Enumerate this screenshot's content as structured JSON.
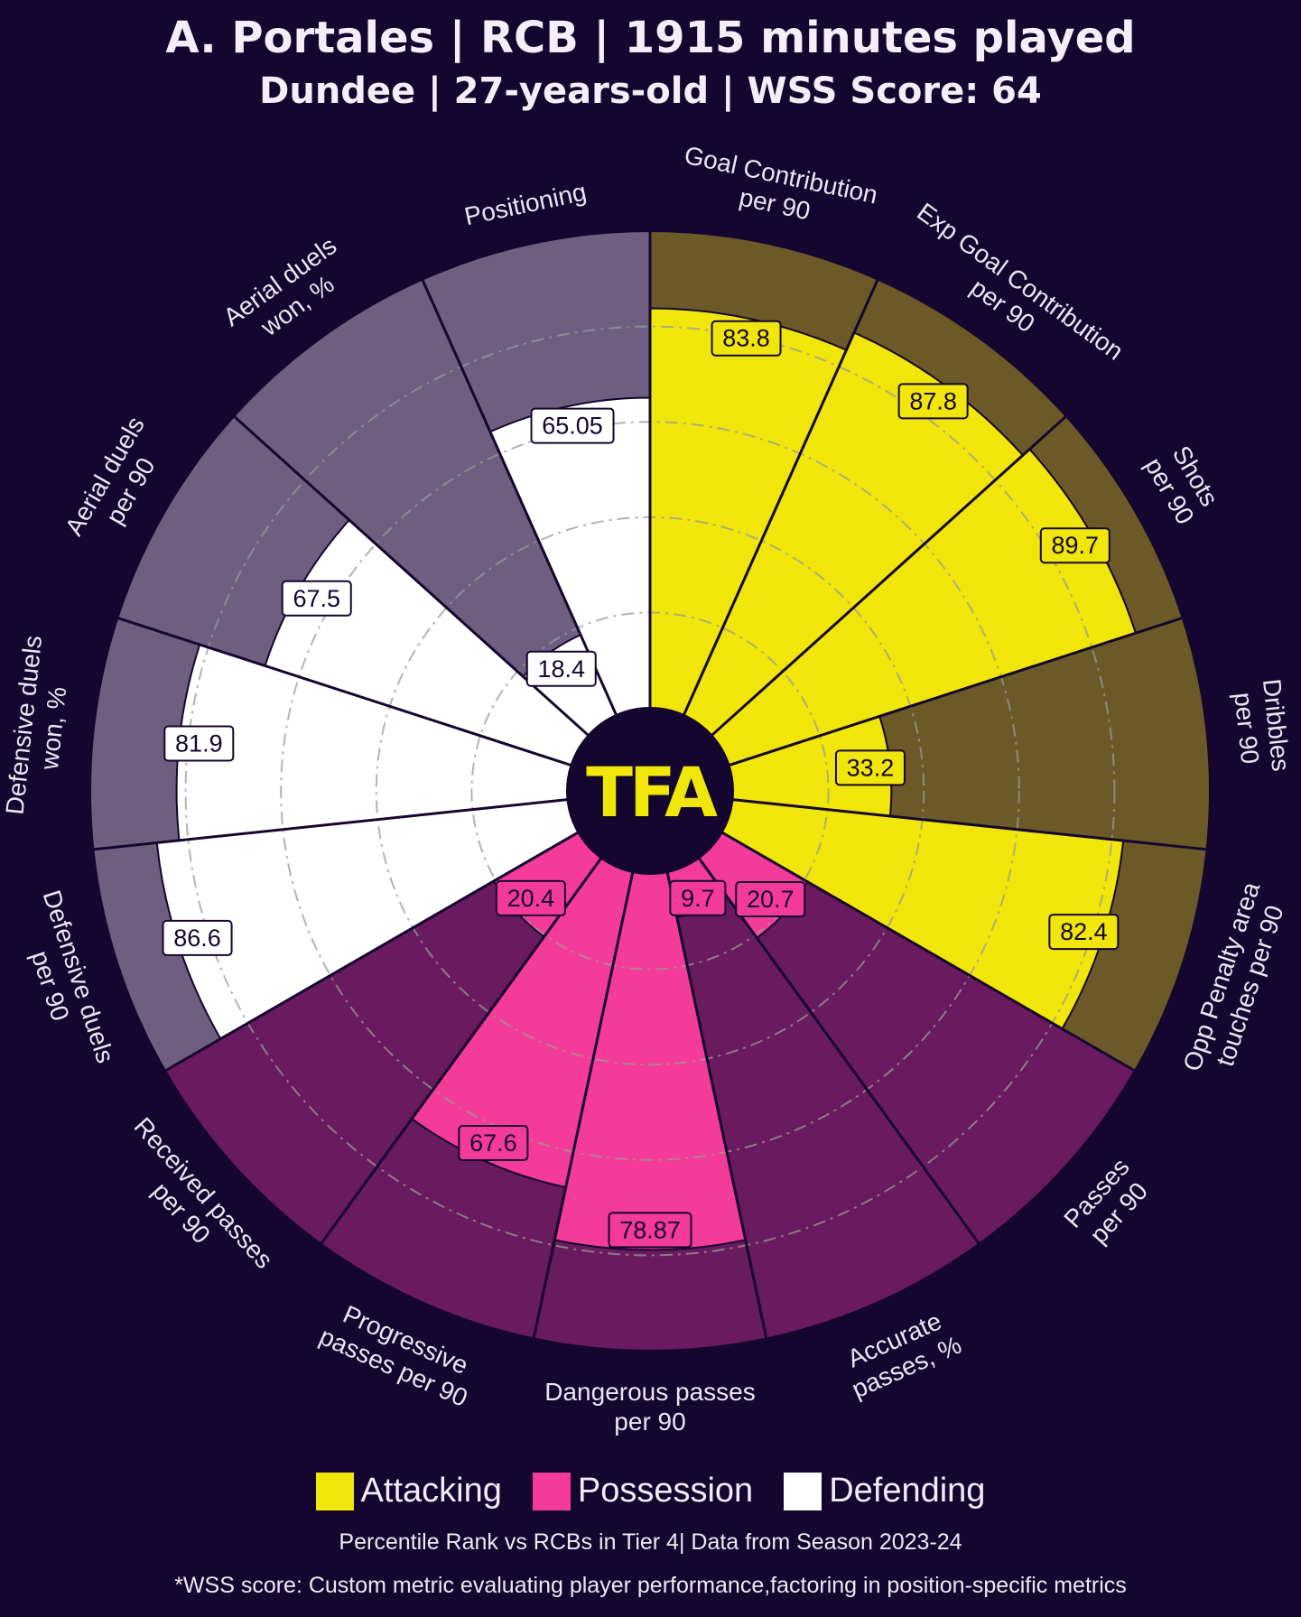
{
  "title": "A. Portales | RCB | 1915 minutes played",
  "subtitle": "Dundee | 27-years-old | WSS Score: 64",
  "logo_text": "TFA",
  "colors": {
    "background": "#14062f",
    "attacking_fill": "#f1e60a",
    "attacking_bg": "#6b5a28",
    "possession_fill": "#f43b99",
    "possession_bg": "#6a1a5e",
    "defending_fill": "#ffffff",
    "defending_bg": "#6e5f80"
  },
  "legend": [
    {
      "label": "Attacking",
      "color": "#f1e60a"
    },
    {
      "label": "Possession",
      "color": "#f43b99"
    },
    {
      "label": "Defending",
      "color": "#ffffff"
    }
  ],
  "footnote": "Percentile Rank vs RCBs in Tier 4| Data from Season 2023-24",
  "wss_note": "*WSS score: Custom metric evaluating player performance,factoring in position-specific metrics",
  "chart_data": {
    "type": "pizza",
    "value_range": [
      0,
      100
    ],
    "gridlines": [
      20,
      40,
      60,
      80
    ],
    "series": [
      {
        "name": "Attacking",
        "metrics": [
          {
            "label": "Goal Contribution\nper 90",
            "value": 83.8,
            "display": "83.8"
          },
          {
            "label": "Exp Goal Contribution\nper 90",
            "value": 87.8,
            "display": "87.8"
          },
          {
            "label": "Shots\nper 90",
            "value": 89.7,
            "display": "89.7"
          },
          {
            "label": "Dribbles\nper 90",
            "value": 33.2,
            "display": "33.2"
          },
          {
            "label": "Opp Penalty area\ntouches per 90",
            "value": 82.4,
            "display": "82.4"
          }
        ]
      },
      {
        "name": "Possession",
        "metrics": [
          {
            "label": "Passes\nper 90",
            "value": 20.7,
            "display": "20.7"
          },
          {
            "label": "Accurate\npasses, %",
            "value": 9.7,
            "display": "9.7"
          },
          {
            "label": "Dangerous passes\nper 90",
            "value": 78.87,
            "display": "78.87"
          },
          {
            "label": "Progressive\npasses per 90",
            "value": 67.6,
            "display": "67.6"
          },
          {
            "label": "Received passes\nper 90",
            "value": 20.4,
            "display": "20.4"
          }
        ]
      },
      {
        "name": "Defending",
        "metrics": [
          {
            "label": "Defensive duels\nper 90",
            "value": 86.6,
            "display": "86.6"
          },
          {
            "label": "Defensive duels\nwon, %",
            "value": 81.9,
            "display": "81.9"
          },
          {
            "label": "Aerial duels\nper 90",
            "value": 67.5,
            "display": "67.5"
          },
          {
            "label": "Aerial duels\nwon, %",
            "value": 18.4,
            "display": "18.4"
          },
          {
            "label": "Positioning",
            "value": 65.05,
            "display": "65.05"
          }
        ]
      }
    ]
  }
}
